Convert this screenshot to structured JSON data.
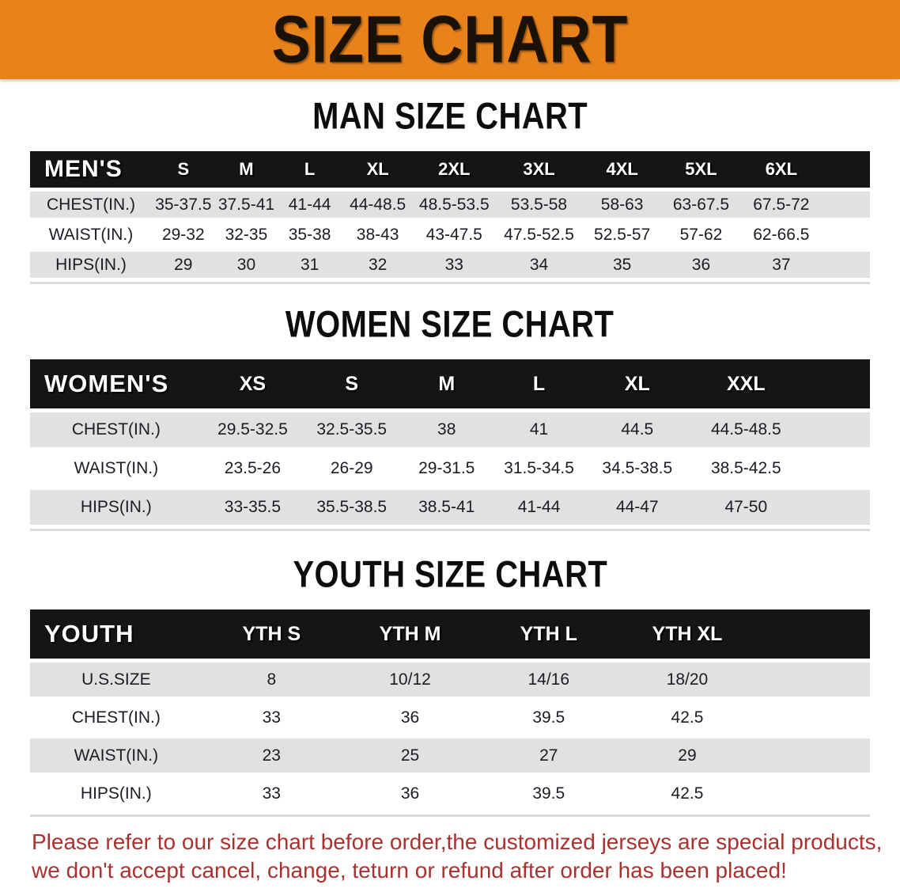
{
  "banner": {
    "title": "SIZE CHART"
  },
  "colors": {
    "banner_bg": "#e8821b",
    "table_header_bg": "#151515",
    "row_gray": "#e1e1e1",
    "note_red": "#a83230"
  },
  "sections": {
    "men": {
      "heading": "MAN SIZE CHART",
      "table": {
        "label": "MEN'S",
        "columns": [
          "S",
          "M",
          "L",
          "XL",
          "2XL",
          "3XL",
          "4XL",
          "5XL",
          "6XL"
        ],
        "rows": [
          {
            "label": "CHEST(IN.)",
            "values": [
              "35-37.5",
              "37.5-41",
              "41-44",
              "44-48.5",
              "48.5-53.5",
              "53.5-58",
              "58-63",
              "63-67.5",
              "67.5-72"
            ]
          },
          {
            "label": "WAIST(IN.)",
            "values": [
              "29-32",
              "32-35",
              "35-38",
              "38-43",
              "43-47.5",
              "47.5-52.5",
              "52.5-57",
              "57-62",
              "62-66.5"
            ]
          },
          {
            "label": "HIPS(IN.)",
            "values": [
              "29",
              "30",
              "31",
              "32",
              "33",
              "34",
              "35",
              "36",
              "37"
            ]
          }
        ]
      }
    },
    "women": {
      "heading": "WOMEN SIZE CHART",
      "table": {
        "label": "WOMEN'S",
        "columns": [
          "XS",
          "S",
          "M",
          "L",
          "XL",
          "XXL"
        ],
        "rows": [
          {
            "label": "CHEST(IN.)",
            "values": [
              "29.5-32.5",
              "32.5-35.5",
              "38",
              "41",
              "44.5",
              "44.5-48.5"
            ]
          },
          {
            "label": "WAIST(IN.)",
            "values": [
              "23.5-26",
              "26-29",
              "29-31.5",
              "31.5-34.5",
              "34.5-38.5",
              "38.5-42.5"
            ]
          },
          {
            "label": "HIPS(IN.)",
            "values": [
              "33-35.5",
              "35.5-38.5",
              "38.5-41",
              "41-44",
              "44-47",
              "47-50"
            ]
          }
        ]
      }
    },
    "youth": {
      "heading": "YOUTH SIZE CHART",
      "table": {
        "label": "YOUTH",
        "columns": [
          "YTH S",
          "YTH M",
          "YTH L",
          "YTH XL"
        ],
        "rows": [
          {
            "label": "U.S.SIZE",
            "values": [
              "8",
              "10/12",
              "14/16",
              "18/20"
            ]
          },
          {
            "label": "CHEST(IN.)",
            "values": [
              "33",
              "36",
              "39.5",
              "42.5"
            ]
          },
          {
            "label": "WAIST(IN.)",
            "values": [
              "23",
              "25",
              "27",
              "29"
            ]
          },
          {
            "label": "HIPS(IN.)",
            "values": [
              "33",
              "36",
              "39.5",
              "42.5"
            ]
          }
        ]
      }
    }
  },
  "footer_note": {
    "line1": "Please refer to our size chart before order,the customized jerseys are special products,",
    "line2": "we don't accept cancel, change, teturn or refund after order has been placed!"
  }
}
